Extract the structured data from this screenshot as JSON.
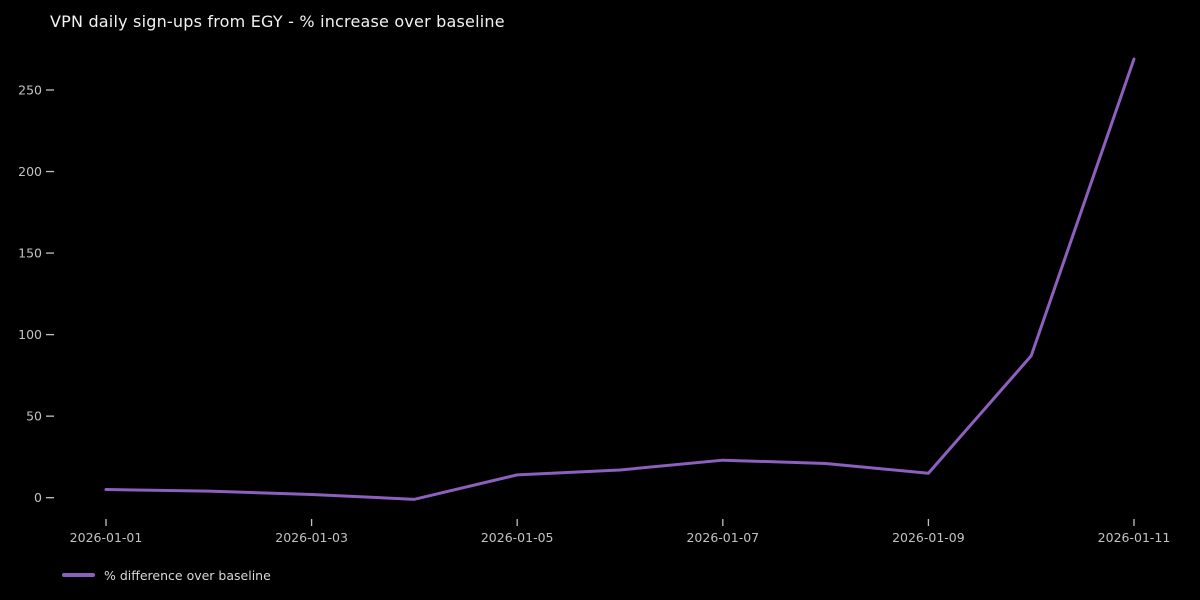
{
  "chart_data": {
    "type": "line",
    "title": "VPN daily sign-ups from EGY - % increase over baseline",
    "xlabel": "",
    "ylabel": "",
    "x": [
      "2026-01-01",
      "2026-01-02",
      "2026-01-03",
      "2026-01-04",
      "2026-01-05",
      "2026-01-06",
      "2026-01-07",
      "2026-01-08",
      "2026-01-09",
      "2026-01-10",
      "2026-01-11"
    ],
    "series": [
      {
        "name": "% difference over baseline",
        "color": "#8d5fbe",
        "values": [
          5,
          4,
          2,
          -1,
          14,
          17,
          23,
          21,
          15,
          87,
          269
        ]
      }
    ],
    "xticks": [
      "2026-01-01",
      "2026-01-03",
      "2026-01-05",
      "2026-01-07",
      "2026-01-09",
      "2026-01-11"
    ],
    "yticks": [
      0,
      50,
      100,
      150,
      200,
      250
    ],
    "ylim": [
      -15,
      283
    ],
    "grid": false,
    "legend_position": "lower-left-below-axis",
    "background_color": "#000000",
    "title_color": "#f2f2f2",
    "tick_color": "#c2c2c2",
    "legend_text_color": "#d9d9d9"
  }
}
